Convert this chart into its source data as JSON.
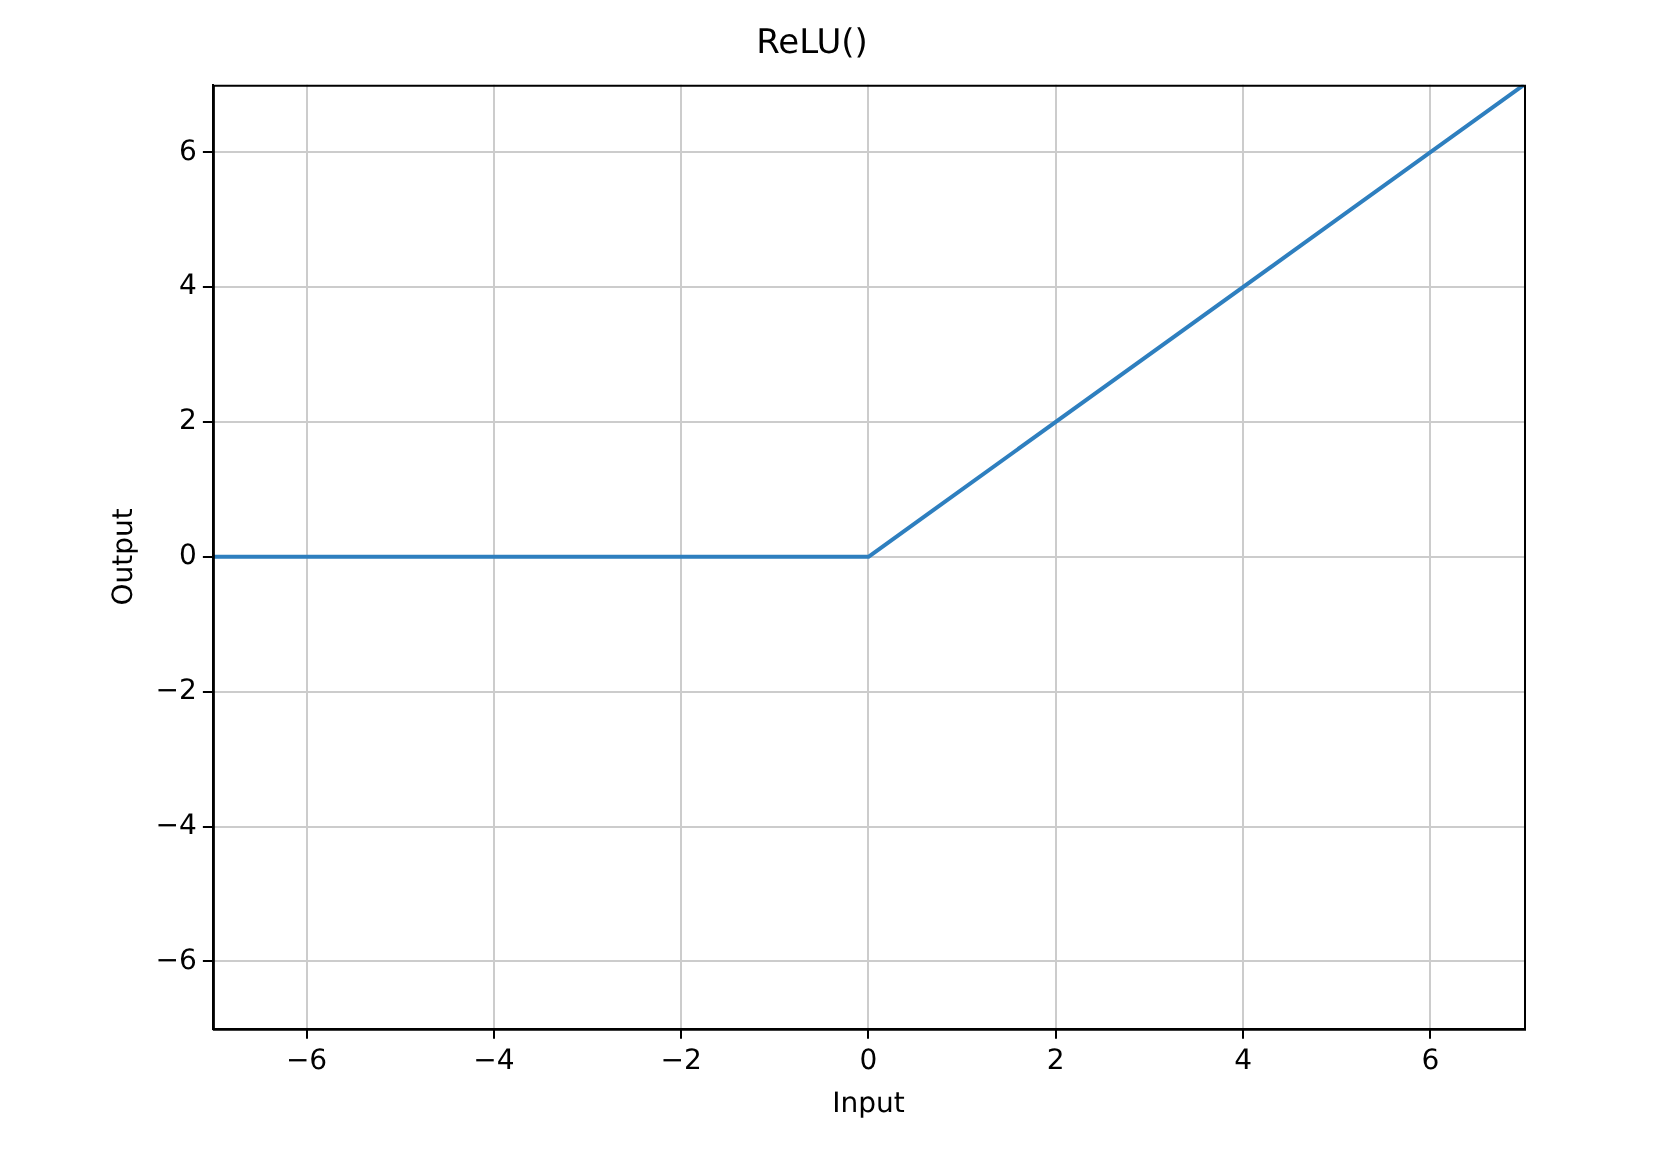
{
  "chart_data": {
    "type": "line",
    "title": "ReLU()",
    "xlabel": "Input",
    "ylabel": "Output",
    "x": [
      -7,
      0,
      7
    ],
    "series": [
      {
        "color": "#2e7fbf",
        "values": [
          0,
          0,
          7
        ]
      }
    ],
    "xlim": [
      -7,
      7
    ],
    "ylim": [
      -7,
      7
    ],
    "xticks": [
      {
        "value": -6,
        "label": "−6"
      },
      {
        "value": -4,
        "label": "−4"
      },
      {
        "value": -2,
        "label": "−2"
      },
      0,
      2,
      4,
      6
    ],
    "yticks": [
      {
        "value": -6,
        "label": "−6"
      },
      {
        "value": -4,
        "label": "−4"
      },
      {
        "value": -2,
        "label": "−2"
      },
      0,
      2,
      4,
      6
    ],
    "grid": true,
    "marker": "none",
    "line_style": "solid",
    "legend": false
  }
}
